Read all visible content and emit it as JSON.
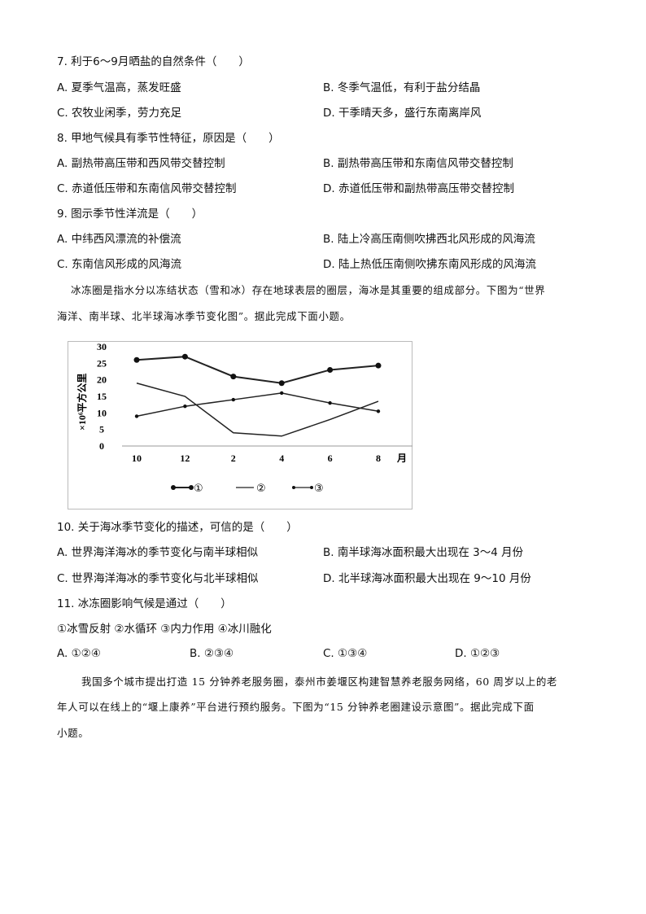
{
  "q7": {
    "stem": "7. 利于6～9月晒盐的自然条件（　　）",
    "A": "A. 夏季气温高，蒸发旺盛",
    "B": "B. 冬季气温低，有利于盐分结晶",
    "C": "C. 农牧业闲季，劳力充足",
    "D": "D. 干季晴天多，盛行东南离岸风"
  },
  "q8": {
    "stem": "8. 甲地气候具有季节性特征，原因是（　　）",
    "A": "A. 副热带高压带和西风带交替控制",
    "B": "B. 副热带高压带和东南信风带交替控制",
    "C": "C. 赤道低压带和东南信风带交替控制",
    "D": "D. 赤道低压带和副热带高压带交替控制"
  },
  "q9": {
    "stem": "9. 图示季节性洋流是（　　）",
    "A": "A. 中纬西风漂流的补偿流",
    "B": "B. 陆上冷高压南侧吹拂西北风形成的风海流",
    "C": "C. 东南信风形成的风海流",
    "D": "D. 陆上热低压南侧吹拂东南风形成的风海流"
  },
  "passage1": [
    "冰冻圈是指水分以冻结状态（雪和冰）存在地球表层的圈层，海冰是其重要的组成部分。下图为“世界",
    "海洋、南半球、北半球海冰季节变化图”。据此完成下面小题。"
  ],
  "chart_data": {
    "type": "line",
    "ylabel": "×10⁶平方公里",
    "xlabel": "月",
    "categories": [
      "10",
      "12",
      "2",
      "4",
      "6",
      "8"
    ],
    "yticks": [
      0,
      5,
      10,
      15,
      20,
      25,
      30
    ],
    "ylim": [
      0,
      30
    ],
    "grid": false,
    "legend_position": "bottom",
    "series": [
      {
        "name": "①",
        "marker": "large-dot",
        "values": [
          26,
          27,
          21,
          19,
          23,
          24.3
        ]
      },
      {
        "name": "②",
        "marker": "none",
        "values": [
          19,
          15,
          4,
          3,
          8,
          13.5
        ]
      },
      {
        "name": "③",
        "marker": "small-diamond",
        "values": [
          9,
          12,
          14,
          16,
          13,
          10.5
        ]
      }
    ]
  },
  "q10": {
    "stem": "10. 关于海冰季节变化的描述，可信的是（　　）",
    "A": "A. 世界海洋海冰的季节变化与南半球相似",
    "B": "B. 南半球海冰面积最大出现在 3～4 月份",
    "C": "C. 世界海洋海冰的季节变化与北半球相似",
    "D": "D. 北半球海冰面积最大出现在 9～10 月份"
  },
  "q11": {
    "stem": "11. 冰冻圈影响气候是通过（　　）",
    "items": "①冰雪反射  ②水循环  ③内力作用  ④冰川融化",
    "A": "A. ①②④",
    "B": "B. ②③④",
    "C": "C. ①③④",
    "D": "D. ①②③"
  },
  "passage2": [
    "我国多个城市提出打造 15 分钟养老服务圈，泰州市姜堰区构建智慧养老服务网络，60 周岁以上的老",
    "年人可以在线上的“堰上康养”平台进行预约服务。下图为“15 分钟养老圈建设示意图”。据此完成下面",
    "小题。"
  ]
}
